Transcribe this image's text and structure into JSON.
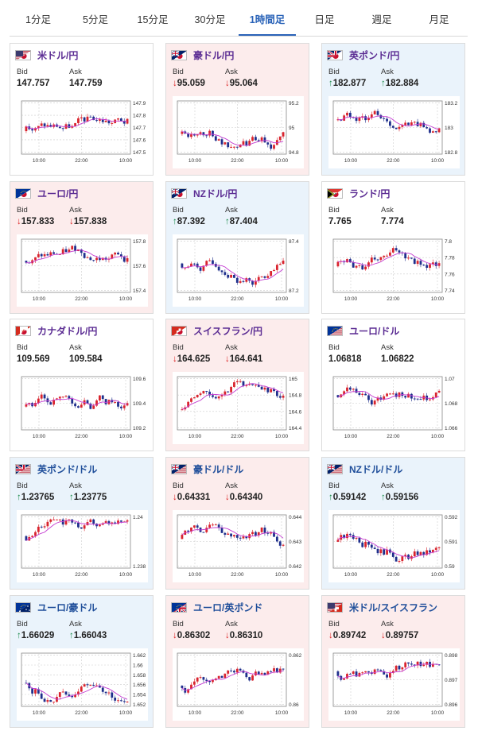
{
  "tabs": [
    {
      "label": "1分足",
      "active": false
    },
    {
      "label": "5分足",
      "active": false
    },
    {
      "label": "15分足",
      "active": false
    },
    {
      "label": "30分足",
      "active": false
    },
    {
      "label": "1時間足",
      "active": true
    },
    {
      "label": "日足",
      "active": false
    },
    {
      "label": "週足",
      "active": false
    },
    {
      "label": "月足",
      "active": false
    }
  ],
  "labels": {
    "bid": "Bid",
    "ask": "Ask"
  },
  "colors": {
    "up": "#d9242e",
    "down": "#1f2f8c",
    "ma": "#c43bd1",
    "chart_bg": "#ffffff",
    "card_pink": "#fcecec",
    "card_blue": "#eaf3fb",
    "accent": "#2a63b8"
  },
  "cards": [
    {
      "pair": "米ドル/円",
      "flags": [
        "us",
        "jp"
      ],
      "name_color": "purple",
      "bg": "white",
      "bid": "147.757",
      "ask": "147.759",
      "dir": "none",
      "chart_data": {
        "type": "line",
        "x_labels": [
          "10:00",
          "22:00",
          "10:00"
        ],
        "y_ticks": [
          "147.9",
          "147.8",
          "147.7",
          "147.6",
          "147.5"
        ],
        "ylim": [
          147.5,
          147.9
        ]
      }
    },
    {
      "pair": "豪ドル/円",
      "flags": [
        "au",
        "jp"
      ],
      "name_color": "purple",
      "bg": "pink",
      "bid": "95.059",
      "ask": "95.064",
      "dir": "down",
      "chart_data": {
        "type": "line",
        "x_labels": [
          "10:00",
          "22:00",
          "10:00"
        ],
        "y_ticks": [
          "95.2",
          "95",
          "94.8"
        ],
        "ylim": [
          94.8,
          95.2
        ]
      }
    },
    {
      "pair": "英ポンド/円",
      "flags": [
        "gb",
        "jp"
      ],
      "name_color": "purple",
      "bg": "blue",
      "bid": "182.877",
      "ask": "182.884",
      "dir": "up",
      "chart_data": {
        "type": "line",
        "x_labels": [
          "10:00",
          "22:00",
          "10:00"
        ],
        "y_ticks": [
          "183.2",
          "183",
          "182.8"
        ],
        "ylim": [
          182.8,
          183.2
        ]
      }
    },
    {
      "pair": "ユーロ/円",
      "flags": [
        "eu",
        "jp"
      ],
      "name_color": "purple",
      "bg": "pink",
      "bid": "157.833",
      "ask": "157.838",
      "dir": "down",
      "chart_data": {
        "type": "line",
        "x_labels": [
          "10:00",
          "22:00",
          "10:00"
        ],
        "y_ticks": [
          "157.8",
          "157.6",
          "157.4"
        ],
        "ylim": [
          157.4,
          157.8
        ]
      }
    },
    {
      "pair": "NZドル/円",
      "flags": [
        "nz",
        "jp"
      ],
      "name_color": "purple",
      "bg": "blue",
      "bid": "87.392",
      "ask": "87.404",
      "dir": "up",
      "chart_data": {
        "type": "line",
        "x_labels": [
          "10:00",
          "22:00",
          "10:00"
        ],
        "y_ticks": [
          "87.4",
          "87.2"
        ],
        "ylim": [
          87.2,
          87.4
        ]
      }
    },
    {
      "pair": "ランド/円",
      "flags": [
        "za",
        "jp"
      ],
      "name_color": "purple",
      "bg": "white",
      "bid": "7.765",
      "ask": "7.774",
      "dir": "none",
      "chart_data": {
        "type": "line",
        "x_labels": [
          "10:00",
          "22:00",
          "10:00"
        ],
        "y_ticks": [
          "7.8",
          "7.78",
          "7.76",
          "7.74"
        ],
        "ylim": [
          7.74,
          7.8
        ]
      }
    },
    {
      "pair": "カナダドル/円",
      "flags": [
        "ca",
        "jp"
      ],
      "name_color": "purple",
      "bg": "white",
      "bid": "109.569",
      "ask": "109.584",
      "dir": "none",
      "chart_data": {
        "type": "line",
        "x_labels": [
          "10:00",
          "22:00",
          "10:00"
        ],
        "y_ticks": [
          "109.6",
          "109.4",
          "109.2"
        ],
        "ylim": [
          109.2,
          109.6
        ]
      }
    },
    {
      "pair": "スイスフラン/円",
      "flags": [
        "ch",
        "jp"
      ],
      "name_color": "purple",
      "bg": "pink",
      "bid": "164.625",
      "ask": "164.641",
      "dir": "down",
      "chart_data": {
        "type": "line",
        "x_labels": [
          "10:00",
          "22:00",
          "10:00"
        ],
        "y_ticks": [
          "165",
          "164.8",
          "164.6",
          "164.4"
        ],
        "ylim": [
          164.4,
          165
        ]
      }
    },
    {
      "pair": "ユーロ/ドル",
      "flags": [
        "eu",
        "us"
      ],
      "name_color": "purple",
      "bg": "white",
      "bid": "1.06818",
      "ask": "1.06822",
      "dir": "none",
      "chart_data": {
        "type": "line",
        "x_labels": [
          "10:00",
          "22:00",
          "10:00"
        ],
        "y_ticks": [
          "1.07",
          "1.068",
          "1.066"
        ],
        "ylim": [
          1.066,
          1.07
        ]
      }
    },
    {
      "pair": "英ポンド/ドル",
      "flags": [
        "gb",
        "us"
      ],
      "name_color": "blue",
      "bg": "blue",
      "bid": "1.23765",
      "ask": "1.23775",
      "dir": "up",
      "chart_data": {
        "type": "line",
        "x_labels": [
          "10:00",
          "22:00",
          "10:00"
        ],
        "y_ticks": [
          "1.24",
          "1.238"
        ],
        "ylim": [
          1.238,
          1.24
        ]
      }
    },
    {
      "pair": "豪ドル/ドル",
      "flags": [
        "au",
        "us"
      ],
      "name_color": "blue",
      "bg": "pink",
      "bid": "0.64331",
      "ask": "0.64340",
      "dir": "down",
      "chart_data": {
        "type": "line",
        "x_labels": [
          "10:00",
          "22:00",
          "10:00"
        ],
        "y_ticks": [
          "0.644",
          "0.643",
          "0.642"
        ],
        "ylim": [
          0.642,
          0.644
        ]
      }
    },
    {
      "pair": "NZドル/ドル",
      "flags": [
        "nz",
        "us"
      ],
      "name_color": "blue",
      "bg": "blue",
      "bid": "0.59142",
      "ask": "0.59156",
      "dir": "up",
      "chart_data": {
        "type": "line",
        "x_labels": [
          "10:00",
          "22:00",
          "10:00"
        ],
        "y_ticks": [
          "0.592",
          "0.591",
          "0.59"
        ],
        "ylim": [
          0.59,
          0.592
        ]
      }
    },
    {
      "pair": "ユーロ/豪ドル",
      "flags": [
        "eu",
        "au"
      ],
      "name_color": "blue",
      "bg": "blue",
      "bid": "1.66029",
      "ask": "1.66043",
      "dir": "up",
      "chart_data": {
        "type": "line",
        "x_labels": [
          "10:00",
          "22:00",
          "10:00"
        ],
        "y_ticks": [
          "1.662",
          "1.66",
          "1.658",
          "1.656",
          "1.654",
          "1.652"
        ],
        "ylim": [
          1.652,
          1.662
        ]
      }
    },
    {
      "pair": "ユーロ/英ポンド",
      "flags": [
        "eu",
        "gb"
      ],
      "name_color": "blue",
      "bg": "pink",
      "bid": "0.86302",
      "ask": "0.86310",
      "dir": "down",
      "chart_data": {
        "type": "line",
        "x_labels": [
          "10:00",
          "22:00",
          "10:00"
        ],
        "y_ticks": [
          "0.862",
          "0.86"
        ],
        "ylim": [
          0.86,
          0.862
        ]
      }
    },
    {
      "pair": "米ドル/スイスフラン",
      "flags": [
        "us",
        "ch"
      ],
      "name_color": "blue",
      "bg": "pink",
      "bid": "0.89742",
      "ask": "0.89757",
      "dir": "down",
      "chart_data": {
        "type": "line",
        "x_labels": [
          "10:00",
          "22:00",
          "10:00"
        ],
        "y_ticks": [
          "0.898",
          "0.897",
          "0.896"
        ],
        "ylim": [
          0.896,
          0.898
        ]
      }
    }
  ]
}
